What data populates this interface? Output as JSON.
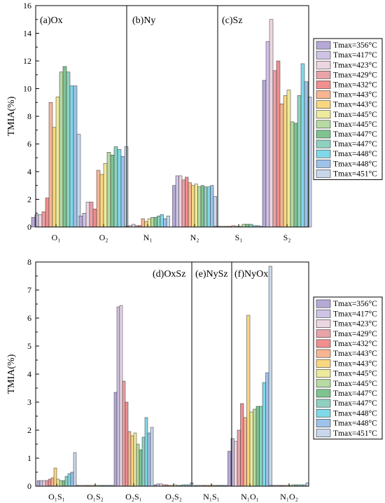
{
  "legend_entries": [
    "Tmax=356°C",
    "Tmax=417°C",
    "Tmax=423°C",
    "Tmax=429°C",
    "Tmax=432°C",
    "Tmax=443°C",
    "Tmax=443°C",
    "Tmax=445°C",
    "Tmax=445°C",
    "Tmax=447°C",
    "Tmax=447°C",
    "Tmax=448°C",
    "Tmax=448°C",
    "Tmax=451°C"
  ],
  "series_colors": [
    "#b6a9d6",
    "#cfc3e6",
    "#ecd6e2",
    "#e9a3a9",
    "#f28e8e",
    "#f7b592",
    "#f9d77f",
    "#eeea9c",
    "#b6dba3",
    "#7fc391",
    "#8fd1c0",
    "#7fd9e8",
    "#9ec3eb",
    "#c8d7ea"
  ],
  "chart_data": [
    {
      "type": "bar",
      "title": "(a)Ox",
      "ylabel": "TMIA(%)",
      "ylim": [
        0,
        16
      ],
      "yticks": [
        0,
        2,
        4,
        6,
        8,
        10,
        12,
        14,
        16
      ],
      "categories": [
        "O₁",
        "O₂"
      ],
      "values": [
        [
          0.7,
          0.9,
          0.9,
          1.1,
          2.1,
          9.0,
          7.2,
          9.4,
          11.2,
          11.6,
          11.2,
          10.2,
          10.2,
          6.7
        ],
        [
          0.8,
          1.0,
          1.8,
          1.8,
          1.3,
          4.1,
          3.8,
          4.6,
          5.4,
          5.2,
          5.8,
          5.6,
          5.1,
          5.8
        ]
      ]
    },
    {
      "type": "bar",
      "title": "(b)Ny",
      "categories": [
        "N₁",
        "N₂"
      ],
      "values": [
        [
          0.05,
          0.1,
          0.2,
          0.1,
          0.1,
          0.6,
          0.4,
          0.6,
          0.7,
          0.7,
          0.8,
          0.9,
          0.6,
          0.8
        ],
        [
          3.0,
          3.7,
          3.7,
          3.4,
          3.6,
          3.2,
          3.0,
          3.1,
          2.9,
          3.0,
          2.9,
          2.9,
          3.0,
          2.2
        ]
      ]
    },
    {
      "type": "bar",
      "title": "(c)Sz",
      "categories": [
        "S₁",
        "S₂"
      ],
      "values": [
        [
          0.05,
          0.05,
          0.05,
          0.05,
          0.05,
          0.1,
          0.05,
          0.05,
          0.2,
          0.2,
          0.2,
          0.1,
          0.1,
          0.05
        ],
        [
          10.6,
          13.4,
          15.0,
          11.3,
          12.0,
          8.9,
          9.5,
          9.9,
          7.6,
          7.5,
          9.5,
          11.8,
          10.5,
          9.4
        ]
      ]
    },
    {
      "type": "bar",
      "title": "(d)OxSz",
      "ylabel": "TMIA(%)",
      "ylim": [
        0,
        8
      ],
      "yticks": [
        0,
        1,
        2,
        3,
        4,
        5,
        6,
        7,
        8
      ],
      "categories": [
        "O₁S₁",
        "O₁S₂",
        "O₂S₁",
        "O₂S₂"
      ],
      "values": [
        [
          0.2,
          0.2,
          0.2,
          0.2,
          0.25,
          0.3,
          0.65,
          0.25,
          0.2,
          0.2,
          0.35,
          0.45,
          0.5,
          1.2
        ],
        [
          0.03,
          0.03,
          0.03,
          0.03,
          0.03,
          0.03,
          0.03,
          0.03,
          0.03,
          0.03,
          0.03,
          0.03,
          0.03,
          0.03
        ],
        [
          3.35,
          6.4,
          6.45,
          3.75,
          3.0,
          1.95,
          1.8,
          1.9,
          1.5,
          1.3,
          1.75,
          2.45,
          1.9,
          2.1
        ],
        [
          0.05,
          0.08,
          0.08,
          0.05,
          0.05,
          0.03,
          0.03,
          0.05,
          0.03,
          0.03,
          0.05,
          0.05,
          0.05,
          0.12
        ]
      ]
    },
    {
      "type": "bar",
      "title": "(e)NySz",
      "categories": [
        "N₁S₁"
      ],
      "values": [
        [
          0.03,
          0.03,
          0.03,
          0.03,
          0.03,
          0.03,
          0.03,
          0.03,
          0.03,
          0.03,
          0.03,
          0.03,
          0.03,
          0.03
        ]
      ]
    },
    {
      "type": "bar",
      "title": "(f)NyOx",
      "categories": [
        "N₁O₁",
        "N₁O₂"
      ],
      "values": [
        [
          1.25,
          1.7,
          1.6,
          2.0,
          2.95,
          2.45,
          6.1,
          2.65,
          2.75,
          2.85,
          2.85,
          3.7,
          4.05,
          7.85
        ],
        [
          0.03,
          0.03,
          0.03,
          0.03,
          0.03,
          0.03,
          0.03,
          0.03,
          0.05,
          0.05,
          0.05,
          0.05,
          0.05,
          0.12
        ]
      ]
    }
  ]
}
